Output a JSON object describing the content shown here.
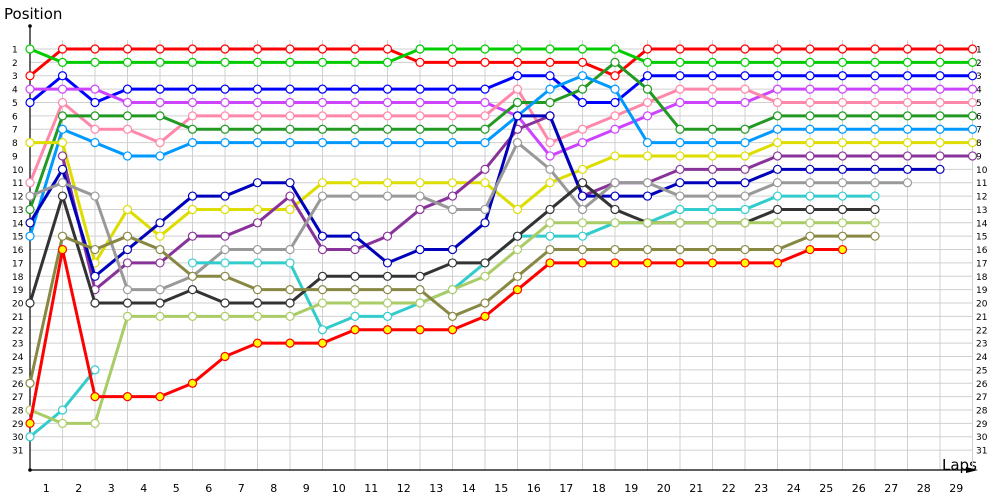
{
  "chart_data": {
    "type": "line",
    "title": "",
    "xlabel": "Laps",
    "ylabel": "Position",
    "x_ticks": [
      1,
      2,
      3,
      4,
      5,
      6,
      7,
      8,
      9,
      10,
      11,
      12,
      13,
      14,
      15,
      16,
      17,
      18,
      19,
      20,
      21,
      22,
      23,
      24,
      25,
      26,
      27,
      28,
      29
    ],
    "y_ticks_left": [
      1,
      2,
      3,
      4,
      5,
      6,
      7,
      8,
      9,
      10,
      11,
      12,
      13,
      14,
      15,
      16,
      17,
      18,
      19,
      20,
      21,
      22,
      23,
      24,
      25,
      26,
      27,
      28,
      29,
      30,
      31
    ],
    "y_ticks_right": [
      1,
      2,
      3,
      4,
      5,
      6,
      7,
      8,
      9,
      10,
      11,
      12,
      13,
      14,
      15,
      16,
      17,
      18,
      19,
      20,
      21,
      22,
      23,
      24,
      25,
      26,
      27,
      28,
      29,
      30,
      31
    ],
    "xlim": [
      0,
      29
    ],
    "ylim": [
      31,
      1
    ],
    "y_inverted": true,
    "grid": true,
    "legend": "none",
    "series": [
      {
        "name": "red",
        "color": "#ff0000",
        "marker": "hollow",
        "positions": [
          3,
          1,
          1,
          1,
          1,
          1,
          1,
          1,
          1,
          1,
          1,
          1,
          2,
          2,
          2,
          2,
          2,
          2,
          3,
          1,
          1,
          1,
          1,
          1,
          1,
          1,
          1,
          1,
          1,
          1
        ]
      },
      {
        "name": "green",
        "color": "#00cc00",
        "marker": "hollow",
        "positions": [
          1,
          2,
          2,
          2,
          2,
          2,
          2,
          2,
          2,
          2,
          2,
          2,
          1,
          1,
          1,
          1,
          1,
          1,
          1,
          2,
          2,
          2,
          2,
          2,
          2,
          2,
          2,
          2,
          2,
          2
        ]
      },
      {
        "name": "blue",
        "color": "#0000ff",
        "marker": "hollow",
        "positions": [
          5,
          3,
          5,
          4,
          4,
          4,
          4,
          4,
          4,
          4,
          4,
          4,
          4,
          4,
          4,
          3,
          3,
          5,
          5,
          3,
          3,
          3,
          3,
          3,
          3,
          3,
          3,
          3,
          3,
          3
        ]
      },
      {
        "name": "violet",
        "color": "#cc44ff",
        "marker": "hollow",
        "positions": [
          4,
          4,
          4,
          5,
          5,
          5,
          5,
          5,
          5,
          5,
          5,
          5,
          5,
          5,
          5,
          6,
          9,
          8,
          7,
          6,
          5,
          5,
          5,
          4,
          4,
          4,
          4,
          4,
          4,
          4
        ]
      },
      {
        "name": "pink",
        "color": "#ff88aa",
        "marker": "hollow",
        "positions": [
          11,
          5,
          7,
          7,
          8,
          6,
          6,
          6,
          6,
          6,
          6,
          6,
          6,
          6,
          6,
          4,
          8,
          7,
          6,
          5,
          4,
          4,
          4,
          5,
          5,
          5,
          5,
          5,
          5,
          5
        ]
      },
      {
        "name": "darkgreen",
        "color": "#229922",
        "marker": "hollow",
        "positions": [
          13,
          6,
          6,
          6,
          6,
          7,
          7,
          7,
          7,
          7,
          7,
          7,
          7,
          7,
          7,
          5,
          5,
          4,
          2,
          4,
          7,
          7,
          7,
          6,
          6,
          6,
          6,
          6,
          6,
          6
        ]
      },
      {
        "name": "skyblue",
        "color": "#0099ff",
        "marker": "hollow",
        "positions": [
          15,
          7,
          8,
          9,
          9,
          8,
          8,
          8,
          8,
          8,
          8,
          8,
          8,
          8,
          8,
          6,
          4,
          3,
          4,
          8,
          8,
          8,
          8,
          7,
          7,
          7,
          7,
          7,
          7,
          7
        ]
      },
      {
        "name": "yellow",
        "color": "#dddd00",
        "marker": "hollow",
        "positions": [
          8,
          8,
          17,
          13,
          15,
          13,
          13,
          13,
          13,
          11,
          11,
          11,
          11,
          11,
          11,
          13,
          11,
          10,
          9,
          9,
          9,
          9,
          9,
          8,
          8,
          8,
          8,
          8,
          8,
          8
        ]
      },
      {
        "name": "purple",
        "color": "#883399",
        "marker": "hollow",
        "positions": [
          null,
          9,
          19,
          17,
          17,
          15,
          15,
          14,
          12,
          16,
          16,
          15,
          13,
          12,
          10,
          7,
          6,
          12,
          11,
          11,
          10,
          10,
          10,
          9,
          9,
          9,
          9,
          9,
          9,
          9
        ]
      },
      {
        "name": "navy",
        "color": "#0000bb",
        "marker": "hollow",
        "positions": [
          14,
          10,
          18,
          16,
          14,
          12,
          12,
          11,
          11,
          15,
          15,
          17,
          16,
          16,
          14,
          6,
          6,
          12,
          12,
          12,
          11,
          11,
          11,
          10,
          10,
          10,
          10,
          10,
          10
        ]
      },
      {
        "name": "gray",
        "color": "#999999",
        "marker": "hollow",
        "positions": [
          12,
          11,
          12,
          19,
          19,
          18,
          16,
          16,
          16,
          12,
          12,
          12,
          12,
          13,
          13,
          8,
          10,
          13,
          11,
          11,
          12,
          12,
          12,
          11,
          11,
          11,
          11,
          11
        ]
      },
      {
        "name": "cyan",
        "color": "#33cccc",
        "marker": "hollow",
        "positions": [
          30,
          28,
          25,
          null,
          null,
          17,
          17,
          17,
          17,
          22,
          21,
          21,
          20,
          19,
          17,
          15,
          15,
          15,
          14,
          14,
          13,
          13,
          13,
          12,
          12,
          12,
          12
        ]
      },
      {
        "name": "black",
        "color": "#333333",
        "marker": "hollow",
        "positions": [
          20,
          12,
          20,
          20,
          20,
          19,
          20,
          20,
          20,
          18,
          18,
          18,
          18,
          17,
          17,
          15,
          13,
          11,
          13,
          14,
          14,
          14,
          14,
          13,
          13,
          13,
          13
        ]
      },
      {
        "name": "lightgreen",
        "color": "#aacc66",
        "marker": "hollow",
        "positions": [
          28,
          29,
          29,
          21,
          21,
          21,
          21,
          21,
          21,
          20,
          20,
          20,
          20,
          19,
          18,
          16,
          14,
          14,
          14,
          14,
          14,
          14,
          14,
          14,
          14,
          14,
          14
        ]
      },
      {
        "name": "olive",
        "color": "#888844",
        "marker": "hollow",
        "positions": [
          26,
          15,
          16,
          15,
          16,
          18,
          18,
          19,
          19,
          19,
          19,
          19,
          19,
          21,
          20,
          18,
          16,
          16,
          16,
          16,
          16,
          16,
          16,
          16,
          15,
          15,
          15
        ]
      },
      {
        "name": "red2",
        "color": "#ff0000",
        "marker": "filled",
        "positions": [
          29,
          16,
          27,
          27,
          27,
          26,
          24,
          23,
          23,
          23,
          22,
          22,
          22,
          22,
          21,
          19,
          17,
          17,
          17,
          17,
          17,
          17,
          17,
          17,
          16,
          16
        ]
      }
    ]
  },
  "axes": {
    "y_title": "Position",
    "x_title": "Laps"
  }
}
